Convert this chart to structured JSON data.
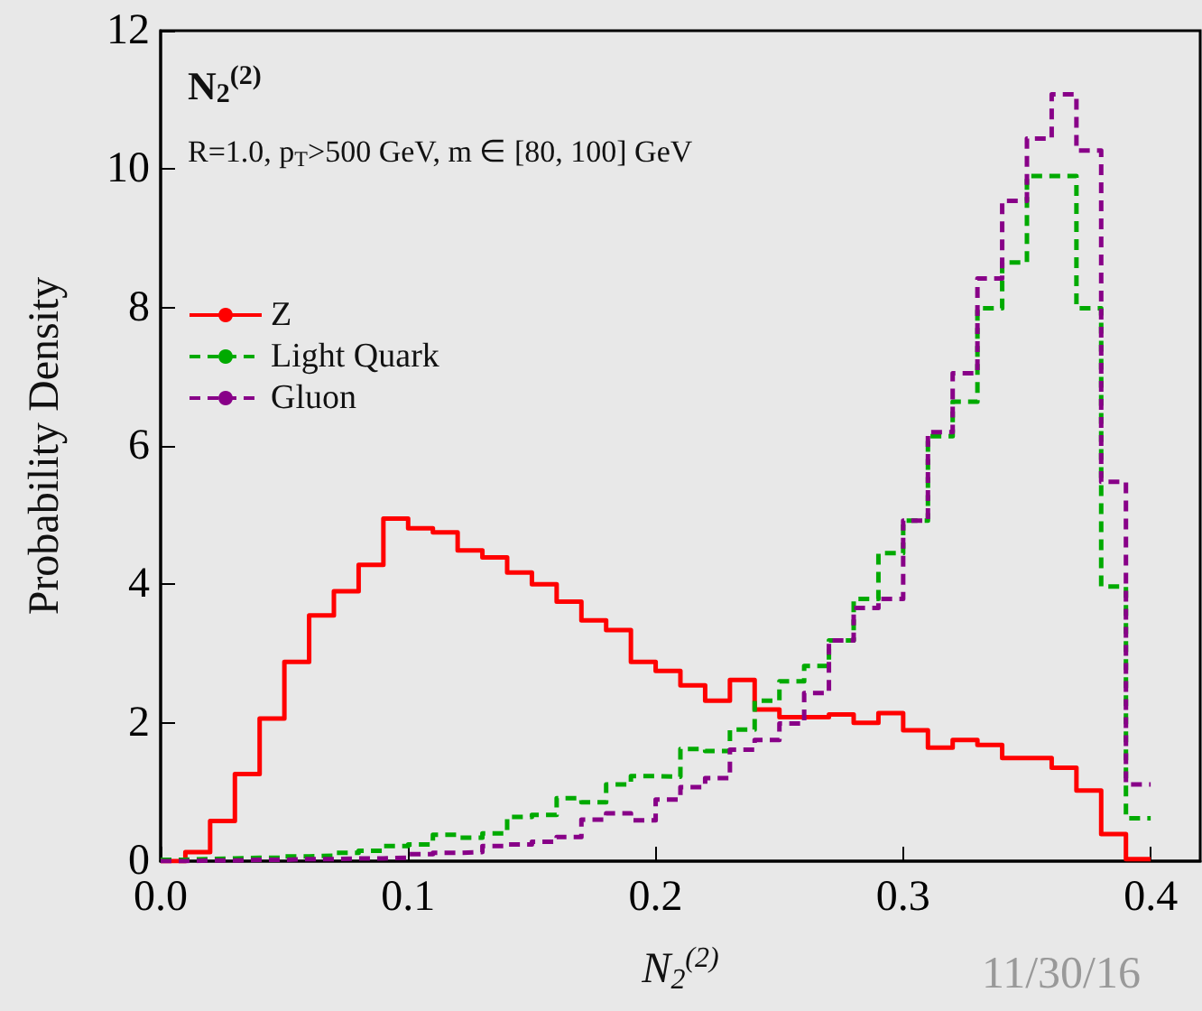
{
  "chart_data": {
    "type": "histogram",
    "title": "N$_{2}$$^{(2)}$",
    "subtitle": "R=1.0, p$_{T}$>500 GeV, m ∈ [80, 100] GeV",
    "xlabel": "N$_{2}$$^{(2)}$",
    "ylabel": "Probability Density",
    "bins": [
      0,
      0.01,
      0.02,
      0.03,
      0.04,
      0.05,
      0.06,
      0.07,
      0.08,
      0.09,
      0.1,
      0.11,
      0.12,
      0.13,
      0.14,
      0.15,
      0.16,
      0.17,
      0.18,
      0.19,
      0.2,
      0.21,
      0.22,
      0.23,
      0.24,
      0.25,
      0.26,
      0.27,
      0.28,
      0.29,
      0.3,
      0.31,
      0.32,
      0.33,
      0.34,
      0.35,
      0.36,
      0.37,
      0.38,
      0.39,
      0.4
    ],
    "series": [
      {
        "name": "Z",
        "color": "#ff0000",
        "line_style": "solid",
        "values": [
          0,
          0.13,
          0.58,
          1.26,
          2.06,
          2.88,
          3.55,
          3.9,
          4.28,
          4.95,
          4.81,
          4.75,
          4.49,
          4.39,
          4.17,
          4.0,
          3.75,
          3.48,
          3.34,
          2.88,
          2.75,
          2.54,
          2.32,
          2.62,
          2.19,
          2.08,
          2.08,
          2.12,
          2.0,
          2.14,
          1.89,
          1.64,
          1.75,
          1.68,
          1.49,
          1.49,
          1.35,
          1.02,
          0.39,
          0.03
        ]
      },
      {
        "name": "Light Quark",
        "color": "#00aa00",
        "line_style": "dashed",
        "values": [
          0.02,
          0.03,
          0.04,
          0.05,
          0.05,
          0.07,
          0.08,
          0.12,
          0.15,
          0.22,
          0.24,
          0.38,
          0.34,
          0.4,
          0.64,
          0.67,
          0.91,
          0.85,
          1.11,
          1.23,
          1.22,
          1.62,
          1.59,
          1.9,
          2.32,
          2.6,
          2.82,
          3.19,
          3.79,
          4.45,
          4.92,
          6.14,
          6.64,
          7.99,
          8.65,
          9.9,
          9.9,
          7.99,
          3.97,
          0.62
        ]
      },
      {
        "name": "Gluon",
        "color": "#880088",
        "line_style": "dashed",
        "values": [
          0,
          0.01,
          0.01,
          0.02,
          0.02,
          0.03,
          0.03,
          0.04,
          0.04,
          0.05,
          0.1,
          0.12,
          0.13,
          0.22,
          0.24,
          0.28,
          0.35,
          0.6,
          0.69,
          0.59,
          0.89,
          1.07,
          1.2,
          1.61,
          1.75,
          1.99,
          2.43,
          3.19,
          3.66,
          3.79,
          4.92,
          6.2,
          7.05,
          8.42,
          9.54,
          10.44,
          11.08,
          10.27,
          5.48,
          1.11
        ]
      }
    ],
    "xlim": [
      0,
      0.42
    ],
    "xticks": [
      {
        "value": 0,
        "label": "0.0"
      },
      0.1,
      0.2,
      0.3,
      0.4
    ],
    "ylim": [
      0,
      12
    ],
    "yticks": [
      0,
      2,
      4,
      6,
      8,
      10,
      12
    ],
    "legend": "top left",
    "grid": false,
    "annotations": [
      "11/30/16"
    ]
  }
}
